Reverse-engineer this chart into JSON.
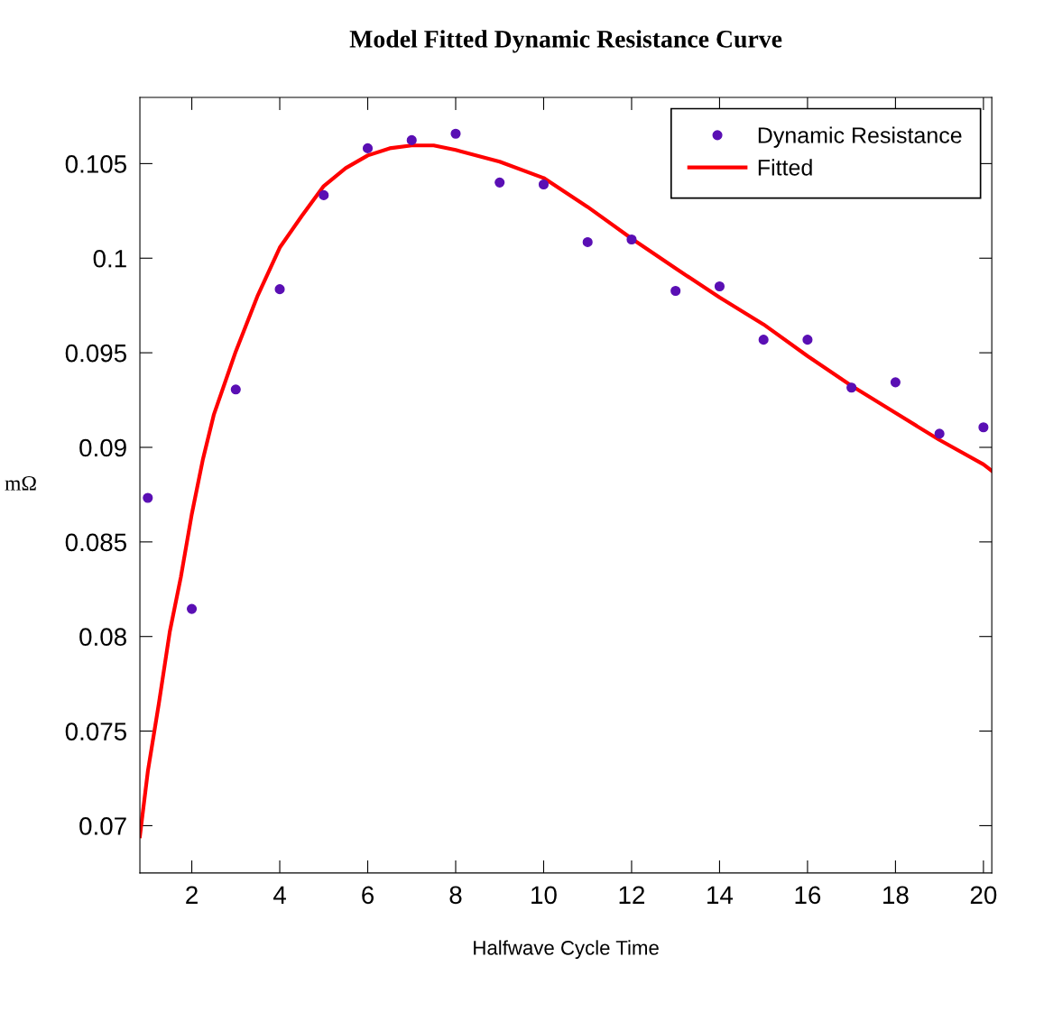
{
  "chart_data": {
    "type": "scatter",
    "title": "Model Fitted Dynamic Resistance Curve",
    "xlabel": "Halfwave Cycle Time",
    "ylabel": "mΩ",
    "xlim": [
      0.82,
      20.19
    ],
    "ylim": [
      0.0675,
      0.1085
    ],
    "xticks": [
      2,
      4,
      6,
      8,
      10,
      12,
      14,
      16,
      18,
      20
    ],
    "yticks": [
      0.07,
      0.075,
      0.08,
      0.085,
      0.09,
      0.095,
      0.1,
      0.105
    ],
    "grid": false,
    "legend": "top right",
    "series": [
      {
        "name": "Dynamic Resistance",
        "marker": "circle",
        "color": "#5a0fb4",
        "x": [
          1,
          2,
          3,
          4,
          5,
          6,
          7,
          8,
          9,
          10,
          11,
          12,
          13,
          14,
          15,
          16,
          17,
          18,
          19,
          20
        ],
        "values": [
          0.08733,
          0.08146,
          0.09306,
          0.09836,
          0.10333,
          0.10581,
          0.10624,
          0.10658,
          0.104,
          0.1039,
          0.10085,
          0.10099,
          0.09827,
          0.09851,
          0.09569,
          0.09569,
          0.09316,
          0.09344,
          0.09072,
          0.09106
        ]
      },
      {
        "name": "Fitted",
        "type": "line",
        "line_style": "solid",
        "color": "#ff0000",
        "x": [
          0.82,
          1,
          1.25,
          1.5,
          1.75,
          2,
          2.25,
          2.5,
          3,
          3.5,
          4,
          4.5,
          5,
          5.5,
          6,
          6.5,
          7,
          7.5,
          8,
          9,
          10,
          11,
          12,
          13,
          14,
          15,
          16,
          17,
          18,
          19,
          20,
          20.19
        ],
        "values": [
          0.06944,
          0.07286,
          0.07644,
          0.08026,
          0.08313,
          0.08647,
          0.08934,
          0.09172,
          0.09507,
          0.09803,
          0.10056,
          0.10223,
          0.10381,
          0.10476,
          0.10543,
          0.10581,
          0.10596,
          0.10596,
          0.10572,
          0.1051,
          0.10424,
          0.10271,
          0.10104,
          0.09946,
          0.09793,
          0.0965,
          0.09483,
          0.09325,
          0.09182,
          0.09039,
          0.0891,
          0.08876
        ]
      }
    ]
  }
}
